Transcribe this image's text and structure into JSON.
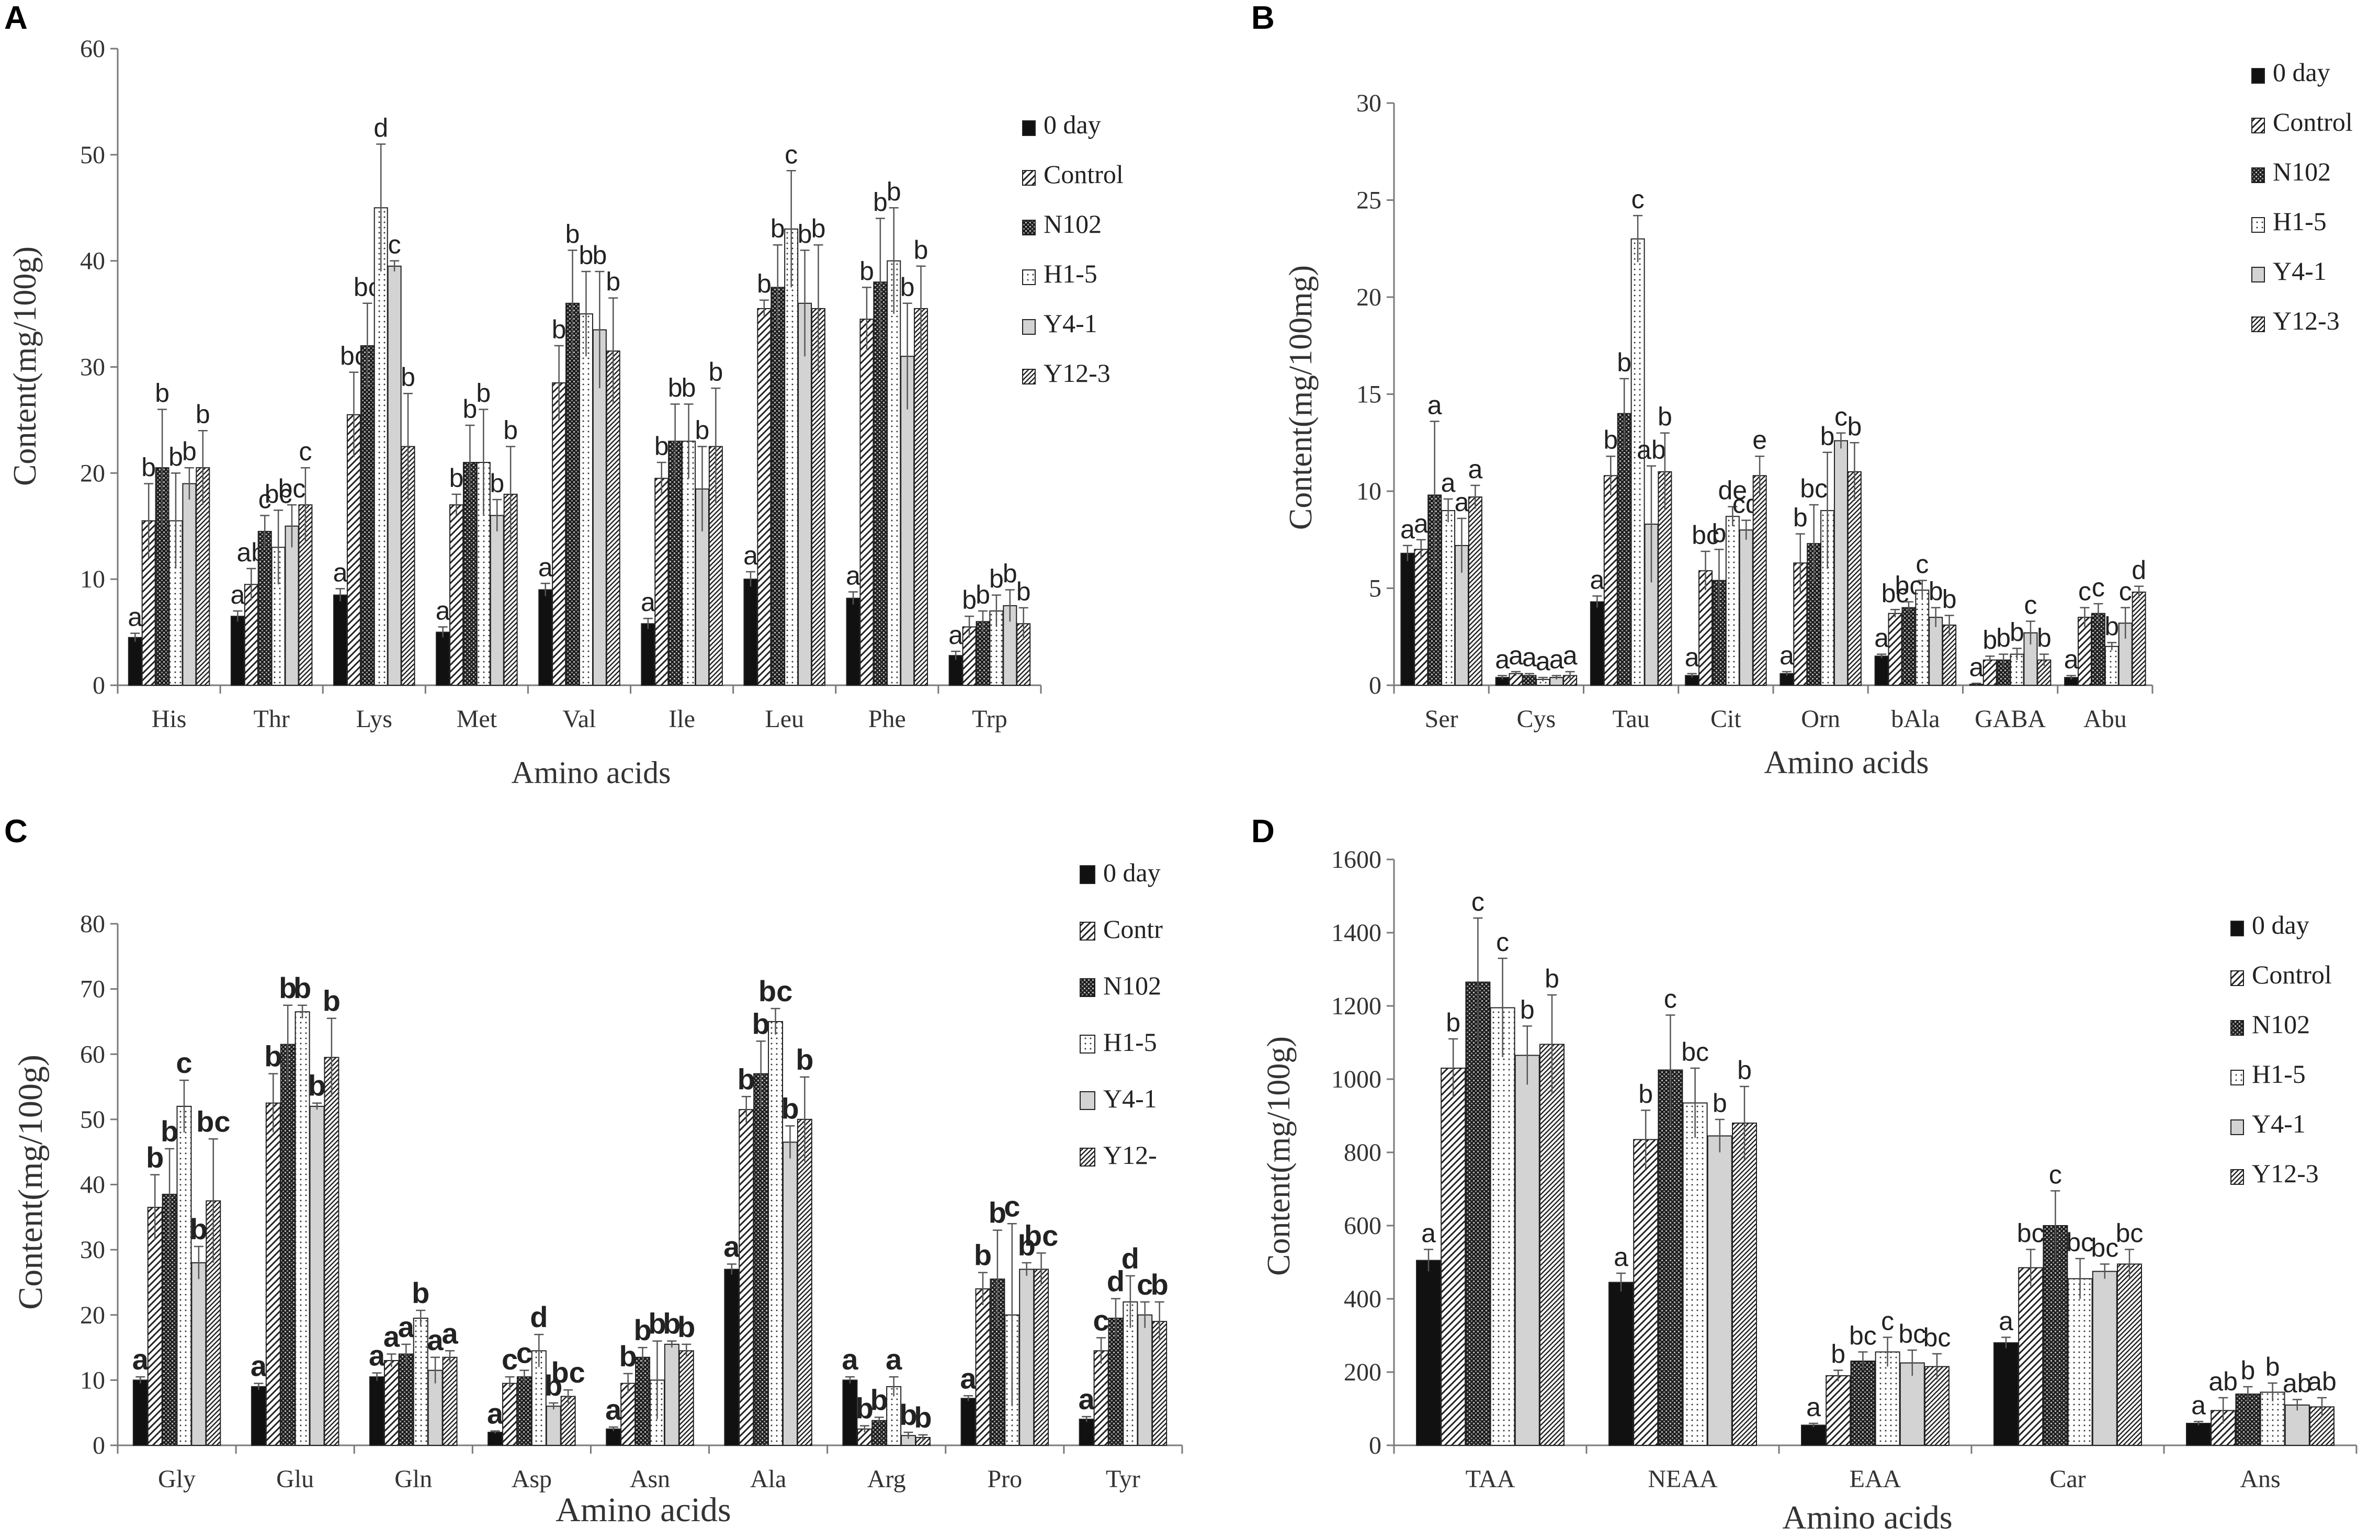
{
  "chart_data": [
    {
      "panel": "A",
      "type": "bar",
      "xlabel": "Amino acids",
      "ylabel": "Content(mg/100g)",
      "ylim": [
        0,
        60
      ],
      "yticks": [
        "0",
        "10",
        "20",
        "30",
        "40",
        "50",
        "60"
      ],
      "categories": [
        "His",
        "Thr",
        "Lys",
        "Met",
        "Val",
        "Ile",
        "Leu",
        "Phe",
        "Trp"
      ],
      "series": [
        {
          "name": "0 day",
          "values": [
            4.5,
            6.5,
            8.5,
            5,
            9,
            5.8,
            10,
            8.2,
            2.8
          ],
          "errors": [
            0.4,
            0.5,
            0.6,
            0.5,
            0.6,
            0.5,
            0.7,
            0.6,
            0.4
          ]
        },
        {
          "name": "Control",
          "values": [
            15.5,
            9.5,
            25.5,
            17,
            28.5,
            19.5,
            35.5,
            34.5,
            5.5
          ],
          "errors": [
            3.5,
            1.5,
            4,
            1,
            3.5,
            1.5,
            0.8,
            3,
            1
          ]
        },
        {
          "name": "N102",
          "values": [
            20.5,
            14.5,
            32,
            21,
            36,
            23,
            37.5,
            38,
            6
          ],
          "errors": [
            5.5,
            1.5,
            4,
            3.5,
            5,
            3.5,
            4,
            6,
            1
          ]
        },
        {
          "name": "H1-5",
          "values": [
            15.5,
            13,
            45,
            21,
            35,
            23,
            43,
            40,
            7
          ],
          "errors": [
            4.5,
            3.5,
            6,
            5,
            4,
            3.5,
            5.5,
            5,
            1.5
          ]
        },
        {
          "name": "Y4-1",
          "values": [
            19,
            15,
            39.5,
            16,
            33.5,
            18.5,
            36,
            31,
            7.5
          ],
          "errors": [
            1.5,
            2,
            0.5,
            1.5,
            5.5,
            4,
            5,
            5,
            1.5
          ]
        },
        {
          "name": "Y12-3",
          "values": [
            20.5,
            17,
            22.5,
            18,
            31.5,
            22.5,
            35.5,
            35.5,
            5.8
          ],
          "errors": [
            3.5,
            3.5,
            5,
            4.5,
            5,
            5.5,
            6,
            4,
            1.5
          ]
        }
      ],
      "sig_labels": [
        [
          "a",
          "b",
          "b",
          "b",
          "b",
          "b"
        ],
        [
          "a",
          "ab",
          "c",
          "bc",
          "bc",
          "c"
        ],
        [
          "a",
          "bc",
          "bc",
          "d",
          "c",
          "b"
        ],
        [
          "a",
          "b",
          "b",
          "b",
          "b",
          "b"
        ],
        [
          "a",
          "b",
          "b",
          "b",
          "b",
          "b"
        ],
        [
          "a",
          "b",
          "b",
          "b",
          "b",
          "b"
        ],
        [
          "a",
          "b",
          "b",
          "c",
          "b",
          "b"
        ],
        [
          "a",
          "b",
          "b",
          "b",
          "b",
          "b"
        ],
        [
          "a",
          "b",
          "b",
          "b",
          "b",
          "b"
        ]
      ]
    },
    {
      "panel": "B",
      "type": "bar",
      "xlabel": "Amino acids",
      "ylabel": "Content(mg/100mg)",
      "ylim": [
        0,
        30
      ],
      "yticks": [
        "0",
        "5",
        "10",
        "15",
        "20",
        "25",
        "30"
      ],
      "categories": [
        "Ser",
        "Cys",
        "Tau",
        "Cit",
        "Orn",
        "bAla",
        "GABA",
        "Abu"
      ],
      "series": [
        {
          "name": "0 day",
          "values": [
            6.8,
            0.4,
            4.3,
            0.5,
            0.6,
            1.5,
            0.05,
            0.4
          ],
          "errors": [
            0.4,
            0.1,
            0.3,
            0.1,
            0.1,
            0.1,
            0.05,
            0.1
          ]
        },
        {
          "name": "Control",
          "values": [
            7,
            0.6,
            10.8,
            5.9,
            6.3,
            3.7,
            1.3,
            3.5
          ],
          "errors": [
            0.5,
            0.1,
            1,
            1,
            1.5,
            0.2,
            0.2,
            0.5
          ]
        },
        {
          "name": "N102",
          "values": [
            9.8,
            0.5,
            14,
            5.4,
            7.3,
            4,
            1.3,
            3.7
          ],
          "errors": [
            3.8,
            0.1,
            1.8,
            1.6,
            2,
            0.3,
            0.3,
            0.5
          ]
        },
        {
          "name": "H1-5",
          "values": [
            9,
            0.3,
            23,
            8.7,
            9,
            4.9,
            1.6,
            2
          ],
          "errors": [
            0.6,
            0.1,
            1.2,
            0.5,
            3,
            0.5,
            0.3,
            0.2
          ]
        },
        {
          "name": "Y4-1",
          "values": [
            7.2,
            0.4,
            8.3,
            8,
            12.6,
            3.5,
            2.7,
            3.2
          ],
          "errors": [
            1.4,
            0.1,
            3,
            0.5,
            0.4,
            0.5,
            0.6,
            0.8
          ]
        },
        {
          "name": "Y12-3",
          "values": [
            9.7,
            0.5,
            11,
            10.8,
            11,
            3.1,
            1.3,
            4.8
          ],
          "errors": [
            0.6,
            0.2,
            2,
            1,
            1.5,
            0.5,
            0.3,
            0.3
          ]
        }
      ],
      "sig_labels": [
        [
          "a",
          "a",
          "a",
          "a",
          "a",
          "a"
        ],
        [
          "a",
          "a",
          "a",
          "a",
          "a",
          "a"
        ],
        [
          "a",
          "b",
          "b",
          "c",
          "ab",
          "b"
        ],
        [
          "a",
          "bc",
          "b",
          "de",
          "cd",
          "e"
        ],
        [
          "a",
          "b",
          "bc",
          "b",
          "c",
          "b"
        ],
        [
          "a",
          "bc",
          "bc",
          "c",
          "b",
          "b"
        ],
        [
          "a",
          "b",
          "b",
          "b",
          "c",
          "b"
        ],
        [
          "a",
          "c",
          "c",
          "b",
          "c",
          "d"
        ]
      ]
    },
    {
      "panel": "C",
      "type": "bar",
      "xlabel": "Amino acids",
      "ylabel": "Content(mg/100g)",
      "ylim": [
        0,
        80
      ],
      "yticks": [
        "0",
        "10",
        "20",
        "30",
        "40",
        "50",
        "60",
        "70",
        "80"
      ],
      "categories": [
        "Gly",
        "Glu",
        "Gln",
        "Asp",
        "Asn",
        "Ala",
        "Arg",
        "Pro",
        "Tyr"
      ],
      "series": [
        {
          "name": "0 day",
          "values": [
            10,
            9,
            10.5,
            2,
            2.5,
            27,
            10,
            7.2,
            4
          ],
          "errors": [
            0.5,
            0.5,
            0.6,
            0.2,
            0.3,
            0.8,
            0.5,
            0.4,
            0.4
          ]
        },
        {
          "name": "Contr",
          "values": [
            36.5,
            52.5,
            13,
            9.5,
            9.5,
            51.5,
            2.5,
            24,
            14.5
          ],
          "errors": [
            5,
            4.5,
            1,
            1,
            1.5,
            2,
            0.5,
            2.5,
            2
          ]
        },
        {
          "name": "N102",
          "values": [
            38.5,
            61.5,
            14,
            10.5,
            13.5,
            57,
            3.8,
            25.5,
            19.5
          ],
          "errors": [
            7,
            6,
            1.5,
            1,
            1.5,
            5,
            0.5,
            7.5,
            3
          ]
        },
        {
          "name": "H1-5",
          "values": [
            52,
            66.5,
            19.5,
            14.5,
            10,
            65,
            9,
            20,
            22
          ],
          "errors": [
            4,
            1,
            1.2,
            2.5,
            6,
            2,
            1.5,
            14,
            4
          ]
        },
        {
          "name": "Y4-1",
          "values": [
            28,
            52,
            11.5,
            6,
            15.5,
            46.5,
            1.5,
            27,
            20
          ],
          "errors": [
            2.5,
            0.5,
            2,
            0.5,
            0.5,
            2.5,
            0.5,
            1,
            2
          ]
        },
        {
          "name": "Y12-3",
          "values": [
            37.5,
            59.5,
            13.5,
            7.5,
            14.5,
            50,
            1.2,
            27,
            19
          ],
          "errors": [
            9.5,
            6,
            1,
            1,
            1,
            6.5,
            0.4,
            2.5,
            3
          ]
        }
      ],
      "sig_labels": [
        [
          "a",
          "b",
          "b",
          "c",
          "b",
          "bc"
        ],
        [
          "a",
          "b",
          "b",
          "b",
          "b",
          "b"
        ],
        [
          "a",
          "a",
          "a",
          "b",
          "a",
          "a"
        ],
        [
          "a",
          "c",
          "c",
          "d",
          "b",
          "bc"
        ],
        [
          "a",
          "b",
          "b",
          "b",
          "b",
          "b"
        ],
        [
          "a",
          "b",
          "b",
          "bc",
          "b",
          "b"
        ],
        [
          "a",
          "b",
          "b",
          "a",
          "b",
          "b"
        ],
        [
          "a",
          "b",
          "b",
          "c",
          "b",
          "bc"
        ],
        [
          "a",
          "c",
          "d",
          "d",
          "c",
          "b"
        ]
      ],
      "legend_entries": [
        "0 day",
        "Contr",
        "N102",
        "H1-5",
        "Y4-1",
        "Y12-"
      ]
    },
    {
      "panel": "D",
      "type": "bar",
      "xlabel": "Amino acids",
      "ylabel": "Content(mg/100g)",
      "ylim": [
        0,
        1600
      ],
      "yticks": [
        "0",
        "200",
        "400",
        "600",
        "800",
        "1000",
        "1200",
        "1400",
        "1600"
      ],
      "categories": [
        "TAA",
        "NEAA",
        "EAA",
        "Car",
        "Ans"
      ],
      "series": [
        {
          "name": "0 day",
          "values": [
            505,
            445,
            55,
            280,
            60
          ],
          "errors": [
            30,
            25,
            5,
            15,
            5
          ]
        },
        {
          "name": "Control",
          "values": [
            1030,
            835,
            190,
            485,
            95
          ],
          "errors": [
            80,
            80,
            15,
            50,
            35
          ]
        },
        {
          "name": "N102",
          "values": [
            1265,
            1025,
            230,
            600,
            140
          ],
          "errors": [
            175,
            150,
            25,
            95,
            20
          ]
        },
        {
          "name": "H1-5",
          "values": [
            1195,
            935,
            255,
            455,
            145
          ],
          "errors": [
            135,
            95,
            40,
            55,
            25
          ]
        },
        {
          "name": "Y4-1",
          "values": [
            1065,
            845,
            225,
            475,
            110
          ],
          "errors": [
            80,
            45,
            35,
            20,
            15
          ]
        },
        {
          "name": "Y12-3",
          "values": [
            1095,
            880,
            215,
            495,
            105
          ],
          "errors": [
            135,
            100,
            35,
            40,
            25
          ]
        }
      ],
      "sig_labels": [
        [
          "a",
          "b",
          "c",
          "c",
          "b",
          "b"
        ],
        [
          "a",
          "b",
          "c",
          "bc",
          "b",
          "b"
        ],
        [
          "a",
          "b",
          "bc",
          "c",
          "bc",
          "bc"
        ],
        [
          "a",
          "bc",
          "c",
          "bc",
          "bc",
          "bc"
        ],
        [
          "a",
          "ab",
          "b",
          "b",
          "ab",
          "ab"
        ]
      ]
    }
  ]
}
